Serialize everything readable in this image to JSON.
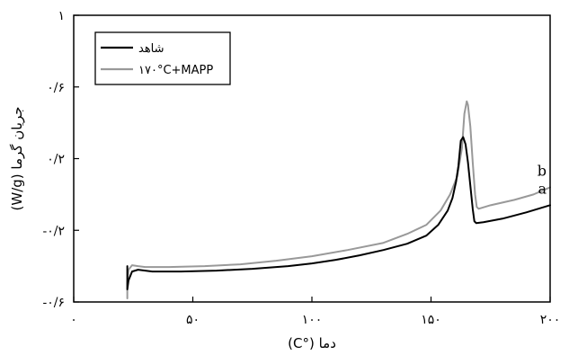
{
  "chart_data": {
    "type": "line",
    "xlabel": "دما (°C)",
    "ylabel": "جریان گرما (W/g)",
    "xlim": [
      0,
      200
    ],
    "ylim": [
      -0.6,
      1.0
    ],
    "x_ticks": [
      0,
      50,
      100,
      150,
      200
    ],
    "x_tick_labels": [
      "۰",
      "۵۰",
      "۱۰۰",
      "۱۵۰",
      "۲۰۰"
    ],
    "y_ticks": [
      -0.6,
      -0.2,
      0.2,
      0.6,
      1.0
    ],
    "y_tick_labels": [
      "-۰/۶",
      "-۰/۲",
      "۰/۲",
      "۰/۶",
      "۱"
    ],
    "legend_position": "top-left",
    "series": [
      {
        "name": "شاهد",
        "color": "#000000",
        "annotation": "a",
        "points": [
          [
            22.5,
            -0.4
          ],
          [
            22.5,
            -0.53
          ],
          [
            23,
            -0.48
          ],
          [
            24.5,
            -0.43
          ],
          [
            27,
            -0.42
          ],
          [
            30,
            -0.425
          ],
          [
            33,
            -0.43
          ],
          [
            36,
            -0.43
          ],
          [
            45,
            -0.43
          ],
          [
            60,
            -0.425
          ],
          [
            75,
            -0.415
          ],
          [
            90,
            -0.4
          ],
          [
            100,
            -0.385
          ],
          [
            110,
            -0.365
          ],
          [
            120,
            -0.34
          ],
          [
            130,
            -0.31
          ],
          [
            140,
            -0.275
          ],
          [
            148,
            -0.23
          ],
          [
            153,
            -0.17
          ],
          [
            157,
            -0.09
          ],
          [
            159,
            -0.02
          ],
          [
            160.5,
            0.07
          ],
          [
            161.5,
            0.16
          ],
          [
            162.5,
            0.3
          ],
          [
            163.5,
            0.32
          ],
          [
            164.5,
            0.28
          ],
          [
            165.5,
            0.18
          ],
          [
            166.5,
            0.05
          ],
          [
            167.5,
            -0.08
          ],
          [
            168.2,
            -0.15
          ],
          [
            169,
            -0.16
          ],
          [
            172,
            -0.155
          ],
          [
            180,
            -0.135
          ],
          [
            190,
            -0.1
          ],
          [
            200,
            -0.06
          ]
        ]
      },
      {
        "name": "۱۷۰°C+MAPP",
        "color": "#999999",
        "annotation": "b",
        "points": [
          [
            22.5,
            -0.58
          ],
          [
            22.5,
            -0.5
          ],
          [
            23,
            -0.42
          ],
          [
            24.5,
            -0.395
          ],
          [
            27,
            -0.4
          ],
          [
            30,
            -0.405
          ],
          [
            40,
            -0.405
          ],
          [
            55,
            -0.4
          ],
          [
            70,
            -0.39
          ],
          [
            85,
            -0.37
          ],
          [
            100,
            -0.345
          ],
          [
            115,
            -0.31
          ],
          [
            130,
            -0.27
          ],
          [
            140,
            -0.22
          ],
          [
            148,
            -0.17
          ],
          [
            154,
            -0.09
          ],
          [
            158,
            0.0
          ],
          [
            161,
            0.1
          ],
          [
            163,
            0.26
          ],
          [
            164,
            0.45
          ],
          [
            165,
            0.52
          ],
          [
            165.5,
            0.5
          ],
          [
            166.5,
            0.38
          ],
          [
            167.5,
            0.18
          ],
          [
            168.5,
            0.0
          ],
          [
            169.2,
            -0.07
          ],
          [
            170,
            -0.08
          ],
          [
            175,
            -0.06
          ],
          [
            185,
            -0.03
          ],
          [
            193,
            0.0
          ],
          [
            200,
            0.04
          ]
        ]
      }
    ]
  }
}
